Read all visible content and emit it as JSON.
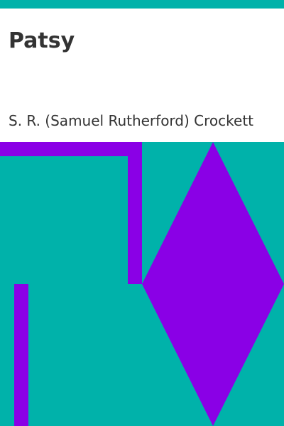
{
  "book": {
    "title": "Patsy",
    "author": "S. R. (Samuel Rutherford) Crockett"
  },
  "colors": {
    "background": "#00b2aa",
    "accent": "#8a00e6",
    "panel": "#ffffff",
    "text": "#333333"
  }
}
